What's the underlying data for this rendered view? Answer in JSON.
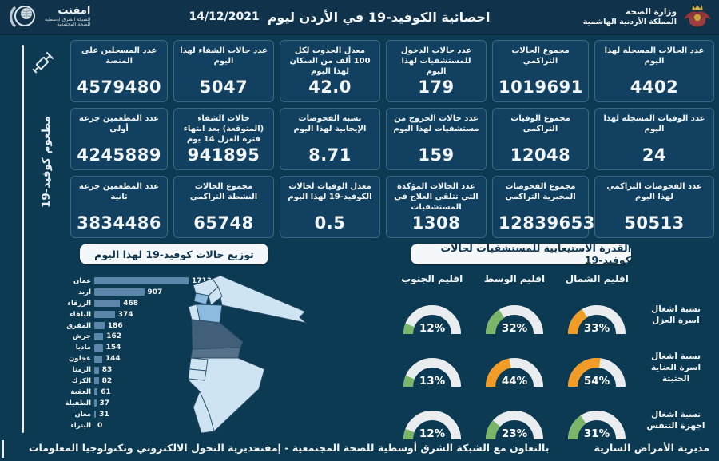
{
  "header": {
    "title": "احصائية الكوفيد-19 في الأردن ليوم",
    "date": "14/12/2021",
    "ministry": {
      "line1": "وزارة الصحة",
      "line2": "المملكة الأردنية الهاشمية"
    },
    "emphnet": {
      "name": "امفنت",
      "sub1": "الشبكة الشرق اوسطية",
      "sub2": "للصحة المجتمعية"
    }
  },
  "vaccination": {
    "strip_label": "مطعوم كوفيد-19"
  },
  "stat_columns": [
    {
      "cards": [
        {
          "label": "عدد الحالات المسجلة لهذا اليوم",
          "value": "4402"
        },
        {
          "label": "عدد الوفيات المسجلة لهذا اليوم",
          "value": "24"
        },
        {
          "label": "عدد الفحوصات التراكمي لهذا اليوم",
          "value": "50513"
        }
      ]
    },
    {
      "cards": [
        {
          "label": "مجموع الحالات التراكمي",
          "value": "1019691"
        },
        {
          "label": "مجموع الوفيات التراكمي",
          "value": "12048"
        },
        {
          "label": "مجموع الفحوصات المخبرية التراكمي",
          "value": "12839653"
        }
      ]
    },
    {
      "cards": [
        {
          "label": "عدد حالات الدخول للمستشفيات لهذا اليوم",
          "value": "179"
        },
        {
          "label": "عدد حالات الخروج من مستشفيات لهذا اليوم",
          "value": "159"
        },
        {
          "label": "عدد الحالات المؤكدة التي تتلقى العلاج في المستشفيات",
          "value": "1308"
        }
      ]
    },
    {
      "cards": [
        {
          "label": "معدل الحدوث لكل 100 ألف من السكان لهذا اليوم",
          "value": "42.0"
        },
        {
          "label": "نسبة الفحوصات الإيجابية لهذا اليوم",
          "value": "8.71"
        },
        {
          "label": "معدل الوفيات لحالات الكوفيد-19 لهذا اليوم",
          "value": "0.5"
        }
      ]
    },
    {
      "cards": [
        {
          "label": "عدد حالات الشفاء لهذا اليوم",
          "value": "5047"
        },
        {
          "label": "حالات الشفاء (المتوقعة) بعد انتهاء فترة العزل 14 يوم",
          "value": "941895"
        },
        {
          "label": "مجموع الحالات النشطة التراكمي",
          "value": "65748"
        }
      ]
    },
    {
      "cards": [
        {
          "label": "عدد المسجلين على المنصة",
          "value": "4579480"
        },
        {
          "label": "عدد المطعمين جرعة أولى",
          "value": "4245889"
        },
        {
          "label": "عدد المطعمين جرعة ثانية",
          "value": "3834486"
        }
      ]
    }
  ],
  "chart_data": [
    {
      "type": "bar",
      "orientation": "horizontal",
      "title": "توزيع حالات كوفيد-19 لهذا اليوم",
      "categories": [
        "عمان",
        "اربد",
        "الزرقاء",
        "البلقاء",
        "المفرق",
        "جرش",
        "مادبا",
        "عجلون",
        "الرمثا",
        "الكرك",
        "العقبة",
        "الطفيلة",
        "معان",
        "البتراء"
      ],
      "values": [
        1713,
        907,
        468,
        374,
        186,
        162,
        154,
        144,
        83,
        82,
        61,
        37,
        31,
        0
      ],
      "xlim": [
        0,
        1713
      ],
      "bar_color": "#5d86ab"
    },
    {
      "type": "gauge",
      "title": "القدرة الاستيعابية للمستشفيات لحالات كوفيد-19",
      "regions": [
        "اقليم الشمال",
        "اقليم الوسط",
        "اقليم الجنوب"
      ],
      "rows": [
        {
          "label": "نسبة اشغال اسرة العزل",
          "values": [
            33,
            32,
            12
          ],
          "colors": [
            "#f09c27",
            "#7ab569",
            "#7ab569"
          ]
        },
        {
          "label": "نسبة اشغال اسرة العناية الحثيثة",
          "values": [
            54,
            44,
            13
          ],
          "colors": [
            "#f09c27",
            "#f09c27",
            "#7ab569"
          ]
        },
        {
          "label": "نسبة اشغال اجهزة التنفس",
          "values": [
            31,
            23,
            12
          ],
          "colors": [
            "#7ab569",
            "#7ab569",
            "#7ab569"
          ]
        }
      ],
      "range": [
        0,
        100
      ]
    }
  ],
  "footer": {
    "right": "مديرية الأمراض السارية",
    "center": "بالتعاون مع الشبكة الشرق أوسطية للصحة المجتمعية - إمفنت",
    "left": "مديرية التحول الالكتروني وتكنولوجيا المعلومات"
  },
  "colors": {
    "background": "#0d3a53",
    "card": "#114061",
    "bar": "#5d86ab",
    "gauge_green": "#7ab569",
    "gauge_orange": "#f09c27",
    "gauge_track": "#e9edef",
    "pill_bg": "#f5f8fa",
    "pill_text": "#0d3550"
  }
}
